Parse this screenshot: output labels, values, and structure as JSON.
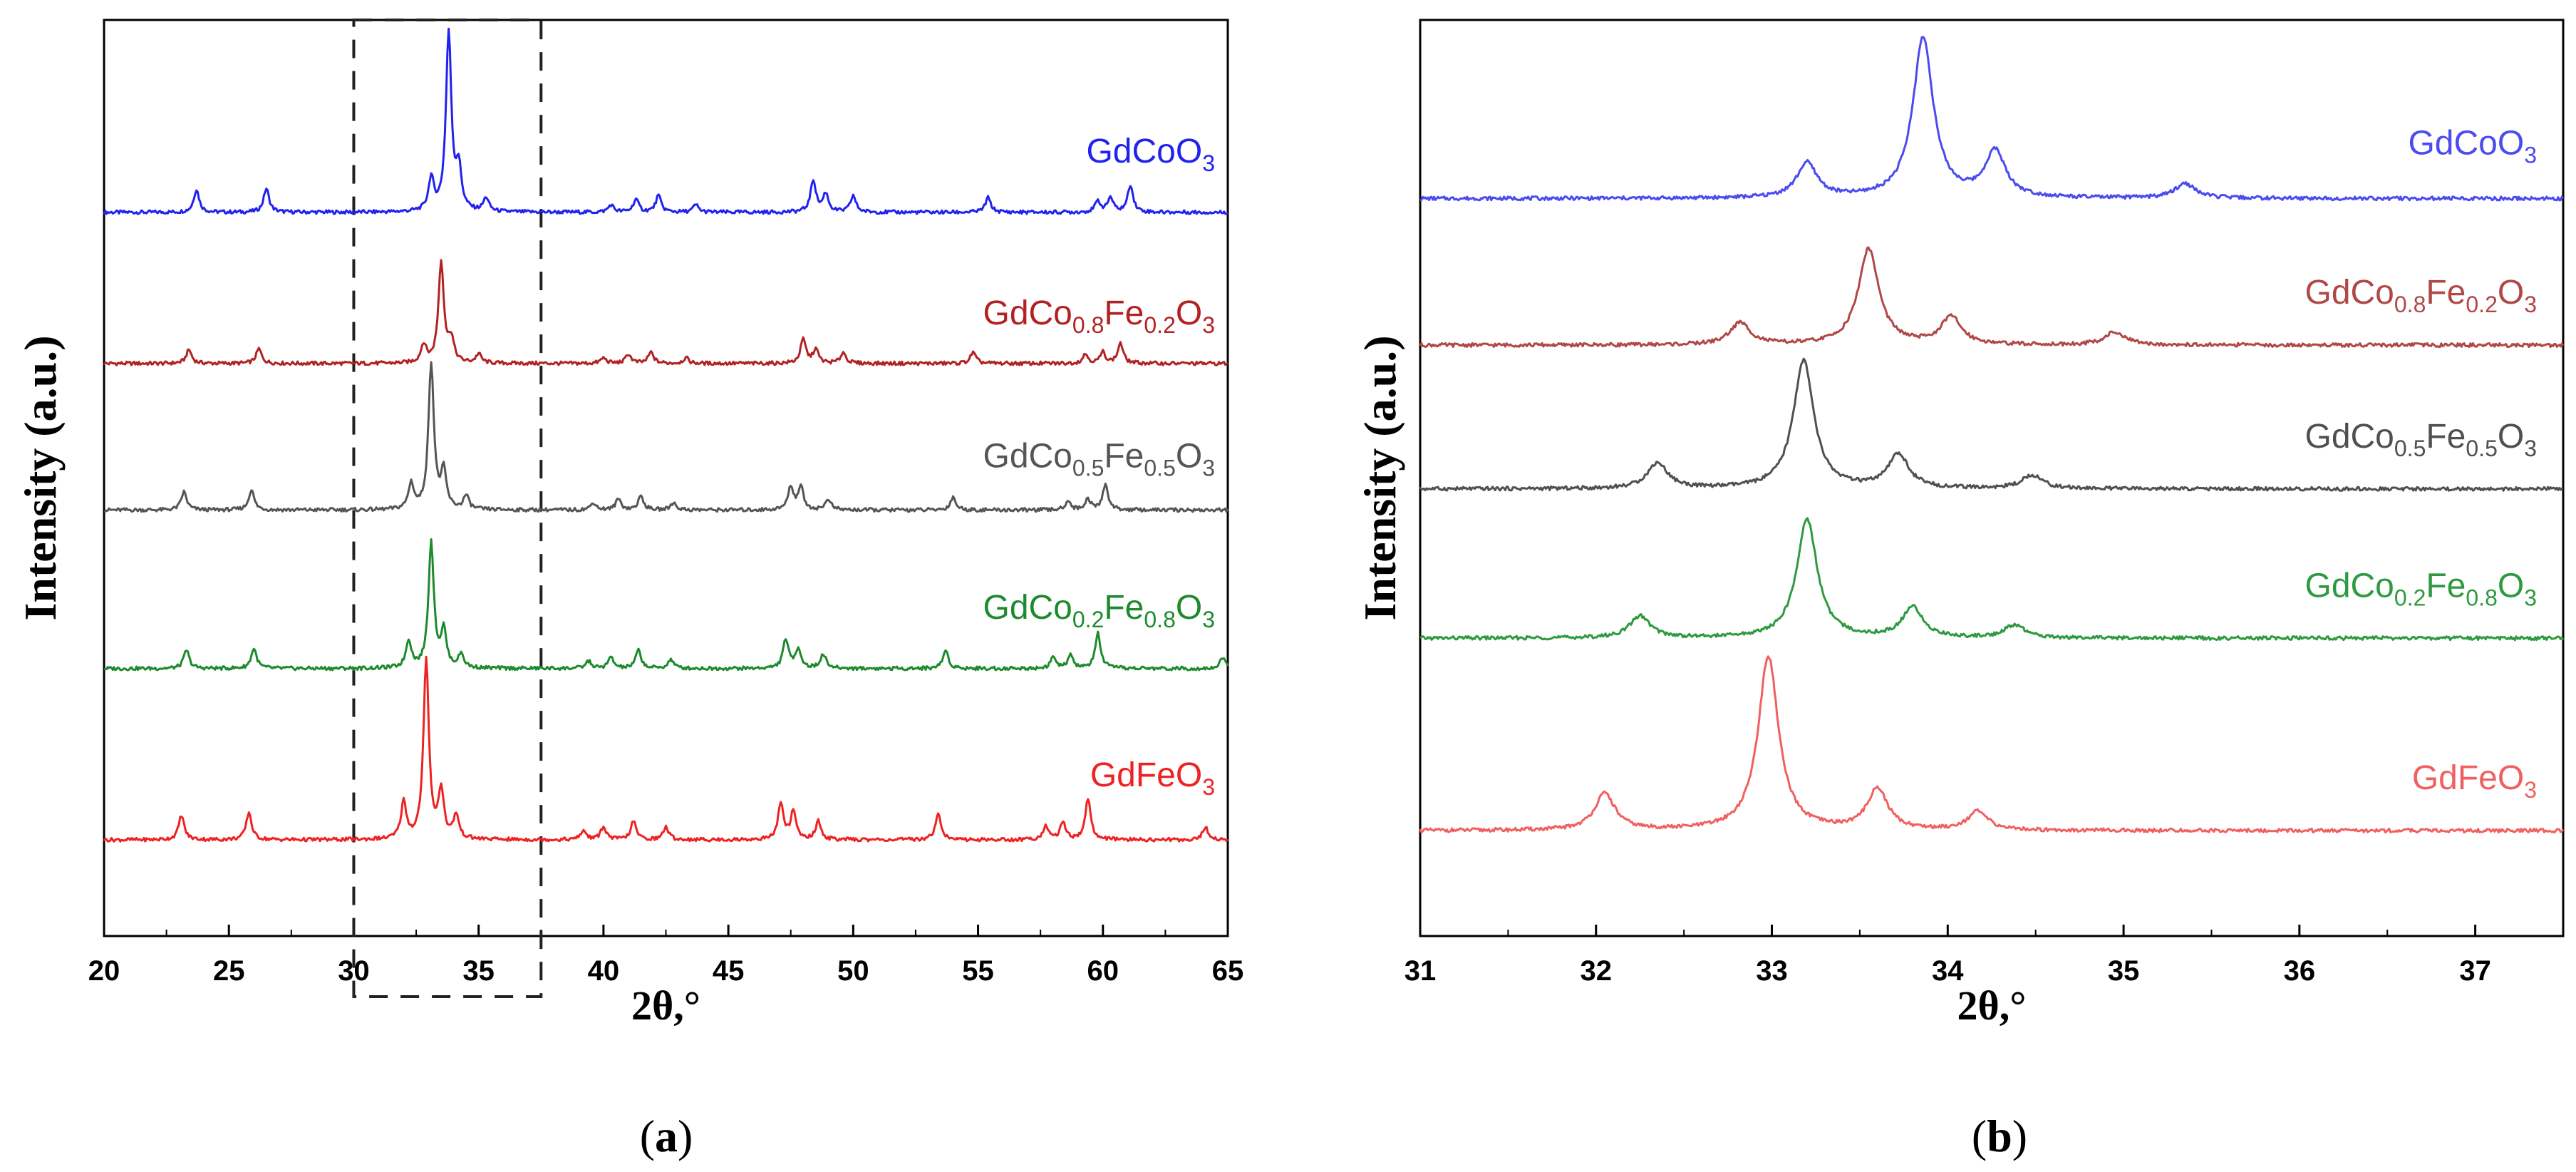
{
  "chart_data": [
    {
      "type": "line",
      "panel": "a",
      "panel_label": {
        "open": "(",
        "letter": "a",
        "close": ")"
      },
      "xlabel": "2θ,°",
      "ylabel": "Intensity (a.u.)",
      "xlim": [
        20,
        65
      ],
      "ylim": [
        0,
        1
      ],
      "xticks": [
        20,
        25,
        30,
        35,
        40,
        45,
        50,
        55,
        60,
        65
      ],
      "xtick_labels": [
        "20",
        "25",
        "30",
        "35",
        "40",
        "45",
        "50",
        "55",
        "60",
        "65"
      ],
      "grid": false,
      "highlight_box": {
        "x_range": [
          30,
          37.5
        ],
        "style": "dashed"
      },
      "series": [
        {
          "name": "GdCoO3",
          "color": "#2222ee",
          "baseline": 0.79,
          "label": {
            "parts": [
              {
                "t": "GdCoO"
              },
              {
                "t": "3",
                "sub": true
              }
            ]
          },
          "peaks": [
            [
              23.7,
              0.025
            ],
            [
              26.5,
              0.026
            ],
            [
              33.1,
              0.035
            ],
            [
              33.8,
              0.195
            ],
            [
              34.2,
              0.045
            ],
            [
              35.3,
              0.015
            ],
            [
              40.3,
              0.008
            ],
            [
              41.3,
              0.014
            ],
            [
              42.2,
              0.018
            ],
            [
              43.7,
              0.008
            ],
            [
              48.4,
              0.035
            ],
            [
              48.9,
              0.02
            ],
            [
              50.0,
              0.018
            ],
            [
              55.4,
              0.016
            ],
            [
              59.8,
              0.012
            ],
            [
              60.3,
              0.016
            ],
            [
              61.1,
              0.03
            ]
          ]
        },
        {
          "name": "GdCo0.8Fe0.2O3",
          "color": "#b22222",
          "baseline": 0.625,
          "label": {
            "parts": [
              {
                "t": "GdCo"
              },
              {
                "t": "0.8",
                "sub": true
              },
              {
                "t": "Fe"
              },
              {
                "t": "0.2",
                "sub": true
              },
              {
                "t": "O"
              },
              {
                "t": "3",
                "sub": true
              }
            ]
          },
          "peaks": [
            [
              23.4,
              0.015
            ],
            [
              26.2,
              0.016
            ],
            [
              32.8,
              0.02
            ],
            [
              33.5,
              0.11
            ],
            [
              33.9,
              0.025
            ],
            [
              35.0,
              0.01
            ],
            [
              40.0,
              0.006
            ],
            [
              41.0,
              0.01
            ],
            [
              41.9,
              0.012
            ],
            [
              43.3,
              0.006
            ],
            [
              48.0,
              0.026
            ],
            [
              48.5,
              0.015
            ],
            [
              49.6,
              0.012
            ],
            [
              54.8,
              0.012
            ],
            [
              59.3,
              0.01
            ],
            [
              60.0,
              0.012
            ],
            [
              60.7,
              0.022
            ]
          ]
        },
        {
          "name": "GdCo0.5Fe0.5O3",
          "color": "#555555",
          "baseline": 0.465,
          "label": {
            "parts": [
              {
                "t": "GdCo"
              },
              {
                "t": "0.5",
                "sub": true
              },
              {
                "t": "Fe"
              },
              {
                "t": "0.5",
                "sub": true
              },
              {
                "t": "O"
              },
              {
                "t": "3",
                "sub": true
              }
            ]
          },
          "peaks": [
            [
              23.2,
              0.02
            ],
            [
              25.9,
              0.022
            ],
            [
              32.3,
              0.028
            ],
            [
              33.1,
              0.16
            ],
            [
              33.6,
              0.04
            ],
            [
              34.5,
              0.015
            ],
            [
              39.6,
              0.008
            ],
            [
              40.6,
              0.012
            ],
            [
              41.5,
              0.015
            ],
            [
              42.8,
              0.008
            ],
            [
              47.5,
              0.025
            ],
            [
              47.9,
              0.025
            ],
            [
              49.0,
              0.012
            ],
            [
              54.0,
              0.014
            ],
            [
              58.6,
              0.01
            ],
            [
              59.4,
              0.012
            ],
            [
              60.1,
              0.028
            ]
          ]
        },
        {
          "name": "GdCo0.2Fe0.8O3",
          "color": "#1e8a2e",
          "baseline": 0.292,
          "label": {
            "parts": [
              {
                "t": "GdCo"
              },
              {
                "t": "0.2",
                "sub": true
              },
              {
                "t": "Fe"
              },
              {
                "t": "0.8",
                "sub": true
              },
              {
                "t": "O"
              },
              {
                "t": "3",
                "sub": true
              }
            ]
          },
          "peaks": [
            [
              23.3,
              0.02
            ],
            [
              26.0,
              0.022
            ],
            [
              32.2,
              0.03
            ],
            [
              33.1,
              0.137
            ],
            [
              33.6,
              0.04
            ],
            [
              34.3,
              0.015
            ],
            [
              39.4,
              0.008
            ],
            [
              40.3,
              0.012
            ],
            [
              41.4,
              0.02
            ],
            [
              42.7,
              0.01
            ],
            [
              47.3,
              0.032
            ],
            [
              47.8,
              0.022
            ],
            [
              48.8,
              0.016
            ],
            [
              53.7,
              0.02
            ],
            [
              58.0,
              0.012
            ],
            [
              58.7,
              0.014
            ],
            [
              59.8,
              0.038
            ],
            [
              64.8,
              0.012
            ]
          ]
        },
        {
          "name": "GdFeO3",
          "color": "#ee2222",
          "baseline": 0.105,
          "label": {
            "parts": [
              {
                "t": "GdFeO"
              },
              {
                "t": "3",
                "sub": true
              }
            ]
          },
          "peaks": [
            [
              23.1,
              0.027
            ],
            [
              25.8,
              0.03
            ],
            [
              32.0,
              0.04
            ],
            [
              32.9,
              0.195
            ],
            [
              33.5,
              0.052
            ],
            [
              34.1,
              0.026
            ],
            [
              39.2,
              0.01
            ],
            [
              40.0,
              0.014
            ],
            [
              41.2,
              0.02
            ],
            [
              42.5,
              0.014
            ],
            [
              47.1,
              0.04
            ],
            [
              47.6,
              0.03
            ],
            [
              48.6,
              0.02
            ],
            [
              53.4,
              0.03
            ],
            [
              57.7,
              0.015
            ],
            [
              58.4,
              0.02
            ],
            [
              59.4,
              0.045
            ],
            [
              64.1,
              0.014
            ]
          ]
        }
      ]
    },
    {
      "type": "line",
      "panel": "b",
      "panel_label": {
        "open": "(",
        "letter": "b",
        "close": ")"
      },
      "xlabel": "2θ,°",
      "ylabel": "Intensity (a.u.)",
      "xlim": [
        31,
        37.5
      ],
      "ylim": [
        0,
        1
      ],
      "xticks": [
        31,
        32,
        33,
        34,
        35,
        36,
        37
      ],
      "xtick_labels": [
        "31",
        "32",
        "33",
        "34",
        "35",
        "36",
        "37"
      ],
      "grid": false,
      "series": [
        {
          "name": "GdCoO3",
          "color": "#4b4bf0",
          "baseline": 0.805,
          "label": {
            "parts": [
              {
                "t": "GdCoO"
              },
              {
                "t": "3",
                "sub": true
              }
            ]
          },
          "peaks": [
            [
              33.2,
              0.038
            ],
            [
              33.86,
              0.175
            ],
            [
              34.27,
              0.05
            ],
            [
              35.35,
              0.016
            ]
          ]
        },
        {
          "name": "GdCo0.8Fe0.2O3",
          "color": "#b04848",
          "baseline": 0.645,
          "label": {
            "parts": [
              {
                "t": "GdCo"
              },
              {
                "t": "0.8",
                "sub": true
              },
              {
                "t": "Fe"
              },
              {
                "t": "0.2",
                "sub": true
              },
              {
                "t": "O"
              },
              {
                "t": "3",
                "sub": true
              }
            ]
          },
          "peaks": [
            [
              32.82,
              0.024
            ],
            [
              33.55,
              0.105
            ],
            [
              34.02,
              0.03
            ],
            [
              34.95,
              0.014
            ]
          ]
        },
        {
          "name": "GdCo0.5Fe0.5O3",
          "color": "#505050",
          "baseline": 0.488,
          "label": {
            "parts": [
              {
                "t": "GdCo"
              },
              {
                "t": "0.5",
                "sub": true
              },
              {
                "t": "Fe"
              },
              {
                "t": "0.5",
                "sub": true
              },
              {
                "t": "O"
              },
              {
                "t": "3",
                "sub": true
              }
            ]
          },
          "peaks": [
            [
              32.35,
              0.028
            ],
            [
              33.18,
              0.14
            ],
            [
              33.72,
              0.037
            ],
            [
              34.48,
              0.015
            ]
          ]
        },
        {
          "name": "GdCo0.2Fe0.8O3",
          "color": "#2e9a40",
          "baseline": 0.325,
          "label": {
            "parts": [
              {
                "t": "GdCo"
              },
              {
                "t": "0.2",
                "sub": true
              },
              {
                "t": "Fe"
              },
              {
                "t": "0.8",
                "sub": true
              },
              {
                "t": "O"
              },
              {
                "t": "3",
                "sub": true
              }
            ]
          },
          "peaks": [
            [
              32.25,
              0.024
            ],
            [
              33.2,
              0.13
            ],
            [
              33.8,
              0.033
            ],
            [
              34.38,
              0.014
            ]
          ]
        },
        {
          "name": "GdFeO3",
          "color": "#f06060",
          "baseline": 0.115,
          "label": {
            "parts": [
              {
                "t": "GdFeO"
              },
              {
                "t": "3",
                "sub": true
              }
            ]
          },
          "peaks": [
            [
              32.05,
              0.04
            ],
            [
              32.98,
              0.19
            ],
            [
              33.6,
              0.045
            ],
            [
              34.17,
              0.02
            ]
          ]
        }
      ]
    }
  ]
}
